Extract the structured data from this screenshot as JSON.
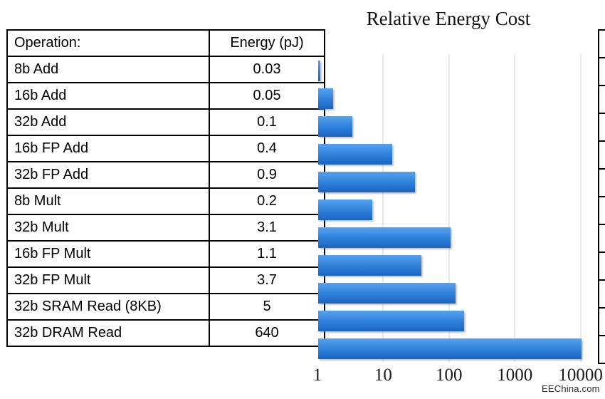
{
  "title": "Relative Energy Cost",
  "watermark": "EEChina.com",
  "table": {
    "headers": [
      "Operation:",
      "Energy (pJ)"
    ],
    "rows": [
      [
        "8b Add",
        "0.03"
      ],
      [
        "16b Add",
        "0.05"
      ],
      [
        "32b Add",
        "0.1"
      ],
      [
        "16b FP Add",
        "0.4"
      ],
      [
        "32b FP Add",
        "0.9"
      ],
      [
        "8b Mult",
        "0.2"
      ],
      [
        "32b Mult",
        "3.1"
      ],
      [
        "16b FP Mult",
        "1.1"
      ],
      [
        "32b FP Mult",
        "3.7"
      ],
      [
        "32b SRAM Read (8KB)",
        "5"
      ],
      [
        "32b DRAM Read",
        "640"
      ]
    ]
  },
  "chart_data": {
    "type": "bar",
    "orientation": "horizontal",
    "scale": "log",
    "title": "Relative Energy Cost",
    "categories": [
      "8b Add",
      "16b Add",
      "32b Add",
      "16b FP Add",
      "32b FP Add",
      "8b Mult",
      "32b Mult",
      "16b FP Mult",
      "32b FP Mult",
      "32b SRAM Read (8KB)",
      "32b DRAM Read"
    ],
    "energy_pj": [
      0.03,
      0.05,
      0.1,
      0.4,
      0.9,
      0.2,
      3.1,
      1.1,
      3.7,
      5,
      640
    ],
    "values": [
      1,
      1.7,
      3.3,
      13.3,
      30,
      6.7,
      103.3,
      36.7,
      123.3,
      166.7,
      21333
    ],
    "x_ticks": [
      "1",
      "10",
      "100",
      "1000",
      "10000"
    ],
    "xlim": [
      1,
      10000
    ],
    "grid": true,
    "legend": false,
    "bar_color_top": "#55a2ef",
    "bar_color_bottom": "#1965c1",
    "gridline_color": "#e8e8e8"
  }
}
